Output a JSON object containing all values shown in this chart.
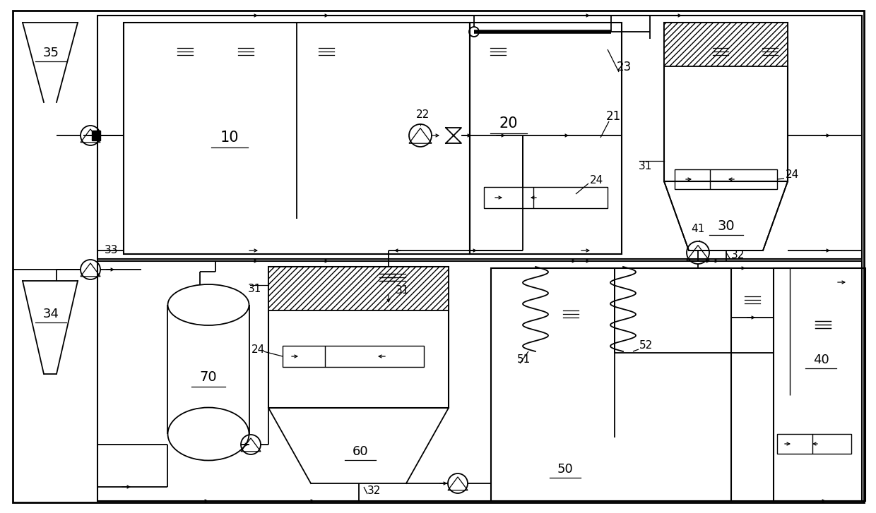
{
  "bg": "#ffffff",
  "lc": "#000000",
  "lw": 1.3
}
